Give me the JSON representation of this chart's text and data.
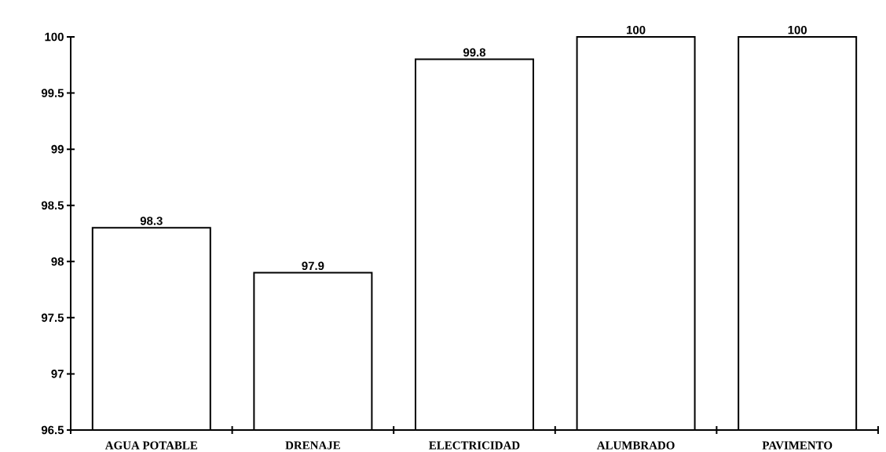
{
  "chart_data": {
    "type": "bar",
    "categories": [
      "AGUA POTABLE",
      "DRENAJE",
      "ELECTRICIDAD",
      "ALUMBRADO",
      "PAVIMENTO"
    ],
    "values": [
      98.3,
      97.9,
      99.8,
      100,
      100
    ],
    "value_labels": [
      "98.3",
      "97.9",
      "99.8",
      "100",
      "100"
    ],
    "color": "#ffffff",
    "ylim": [
      96.5,
      100
    ],
    "yticks": [
      96.5,
      97,
      97.5,
      98,
      98.5,
      99,
      99.5,
      100
    ],
    "grid": false
  }
}
